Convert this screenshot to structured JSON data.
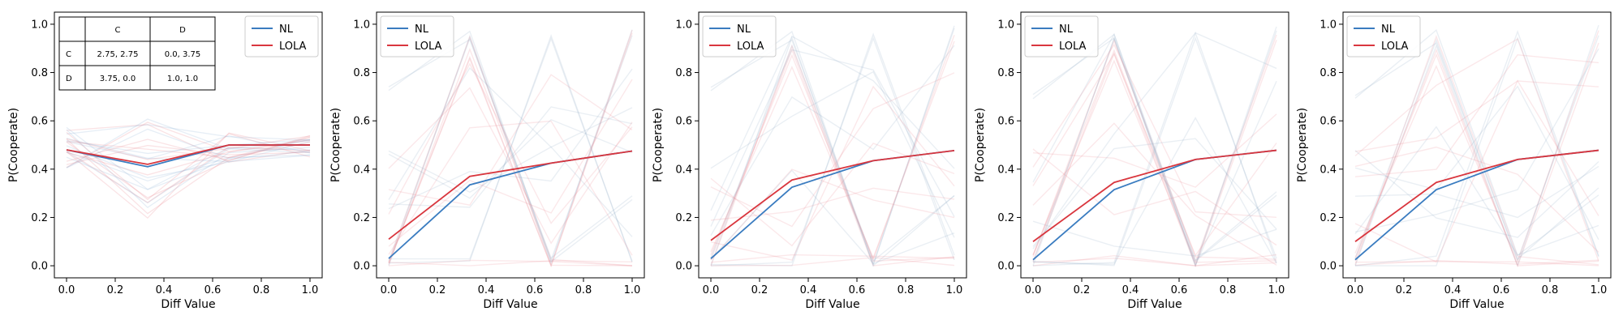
{
  "chart_data": [
    {
      "type": "line",
      "xlabel": "Diff Value",
      "ylabel": "P(Cooperate)",
      "xlim": [
        -0.05,
        1.05
      ],
      "ylim": [
        -0.05,
        1.05
      ],
      "xticks": [
        "0.0",
        "0.2",
        "0.4",
        "0.6",
        "0.8",
        "1.0"
      ],
      "yticks": [
        "0.0",
        "0.2",
        "0.4",
        "0.6",
        "0.8",
        "1.0"
      ],
      "legend": "top-right",
      "x": [
        0.0,
        0.333,
        0.667,
        1.0
      ],
      "series": [
        {
          "name": "NL",
          "color": "#3a7cc0",
          "values": [
            0.48,
            0.41,
            0.5,
            0.5
          ]
        },
        {
          "name": "LOLA",
          "color": "#d9363e",
          "values": [
            0.48,
            0.42,
            0.5,
            0.5
          ]
        }
      ],
      "payoff_table": {
        "col_headers": [
          "C",
          "D"
        ],
        "rows": [
          {
            "label": "C",
            "cells": [
              "2.75, 2.75",
              "0.0, 3.75"
            ]
          },
          {
            "label": "D",
            "cells": [
              "3.75, 0.0",
              "1.0, 1.0"
            ]
          }
        ]
      }
    },
    {
      "type": "line",
      "xlabel": "Diff Value",
      "ylabel": "P(Cooperate)",
      "xlim": [
        -0.05,
        1.05
      ],
      "ylim": [
        -0.05,
        1.05
      ],
      "xticks": [
        "0.0",
        "0.2",
        "0.4",
        "0.6",
        "0.8",
        "1.0"
      ],
      "yticks": [
        "0.0",
        "0.2",
        "0.4",
        "0.6",
        "0.8",
        "1.0"
      ],
      "legend": "top-left",
      "x": [
        0.0,
        0.333,
        0.667,
        1.0
      ],
      "series": [
        {
          "name": "NL",
          "color": "#3a7cc0",
          "values": [
            0.03,
            0.335,
            0.425,
            0.475
          ]
        },
        {
          "name": "LOLA",
          "color": "#d9363e",
          "values": [
            0.11,
            0.37,
            0.425,
            0.475
          ]
        }
      ]
    },
    {
      "type": "line",
      "xlabel": "Diff Value",
      "ylabel": "P(Cooperate)",
      "xlim": [
        -0.05,
        1.05
      ],
      "ylim": [
        -0.05,
        1.05
      ],
      "xticks": [
        "0.0",
        "0.2",
        "0.4",
        "0.6",
        "0.8",
        "1.0"
      ],
      "yticks": [
        "0.0",
        "0.2",
        "0.4",
        "0.6",
        "0.8",
        "1.0"
      ],
      "legend": "top-left",
      "x": [
        0.0,
        0.333,
        0.667,
        1.0
      ],
      "series": [
        {
          "name": "NL",
          "color": "#3a7cc0",
          "values": [
            0.03,
            0.325,
            0.435,
            0.477
          ]
        },
        {
          "name": "LOLA",
          "color": "#d9363e",
          "values": [
            0.105,
            0.355,
            0.435,
            0.477
          ]
        }
      ]
    },
    {
      "type": "line",
      "xlabel": "Diff Value",
      "ylabel": "P(Cooperate)",
      "xlim": [
        -0.05,
        1.05
      ],
      "ylim": [
        -0.05,
        1.05
      ],
      "xticks": [
        "0.0",
        "0.2",
        "0.4",
        "0.6",
        "0.8",
        "1.0"
      ],
      "yticks": [
        "0.0",
        "0.2",
        "0.4",
        "0.6",
        "0.8",
        "1.0"
      ],
      "legend": "top-left",
      "x": [
        0.0,
        0.333,
        0.667,
        1.0
      ],
      "series": [
        {
          "name": "NL",
          "color": "#3a7cc0",
          "values": [
            0.025,
            0.315,
            0.44,
            0.478
          ]
        },
        {
          "name": "LOLA",
          "color": "#d9363e",
          "values": [
            0.1,
            0.345,
            0.44,
            0.478
          ]
        }
      ]
    },
    {
      "type": "line",
      "xlabel": "Diff Value",
      "ylabel": "P(Cooperate)",
      "xlim": [
        -0.05,
        1.05
      ],
      "ylim": [
        -0.05,
        1.05
      ],
      "xticks": [
        "0.0",
        "0.2",
        "0.4",
        "0.6",
        "0.8",
        "1.0"
      ],
      "yticks": [
        "0.0",
        "0.2",
        "0.4",
        "0.6",
        "0.8",
        "1.0"
      ],
      "legend": "top-left",
      "x": [
        0.0,
        0.333,
        0.667,
        1.0
      ],
      "series": [
        {
          "name": "NL",
          "color": "#3a7cc0",
          "values": [
            0.025,
            0.315,
            0.44,
            0.478
          ]
        },
        {
          "name": "LOLA",
          "color": "#d9363e",
          "values": [
            0.1,
            0.345,
            0.44,
            0.478
          ]
        }
      ]
    }
  ]
}
